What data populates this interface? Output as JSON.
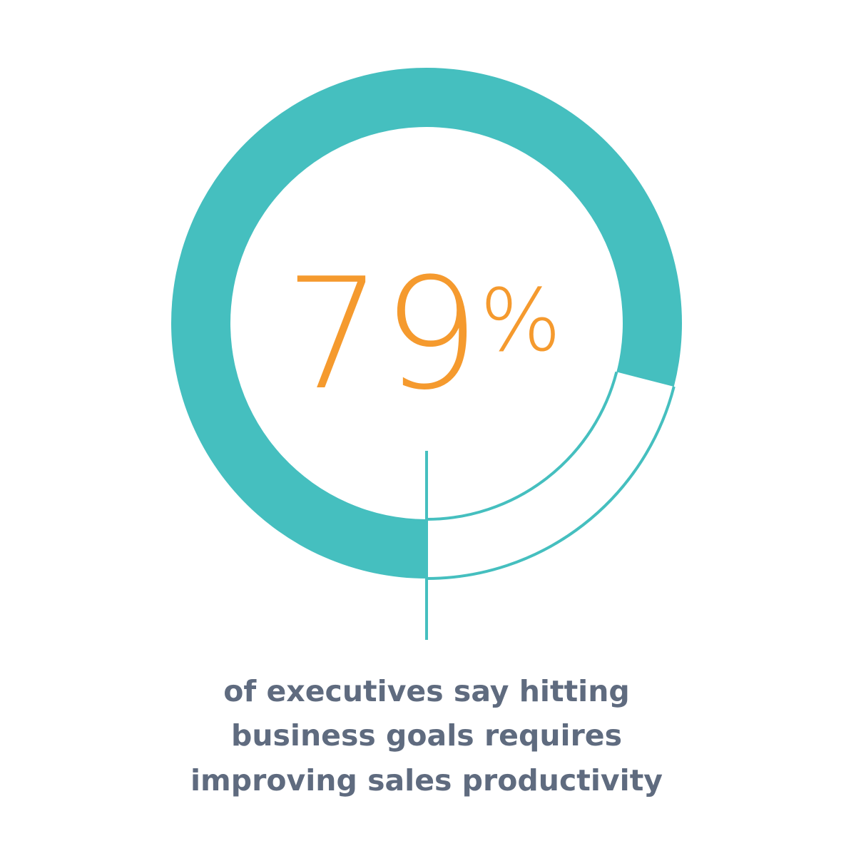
{
  "chart_data": {
    "type": "donut",
    "values": [
      79
    ],
    "value_labels": [
      "79%"
    ],
    "color": "#45bfbf",
    "label_color": "#f59a2e",
    "caption": [
      "of executives say hitting",
      "business goals requires",
      "improving sales productivity"
    ]
  }
}
